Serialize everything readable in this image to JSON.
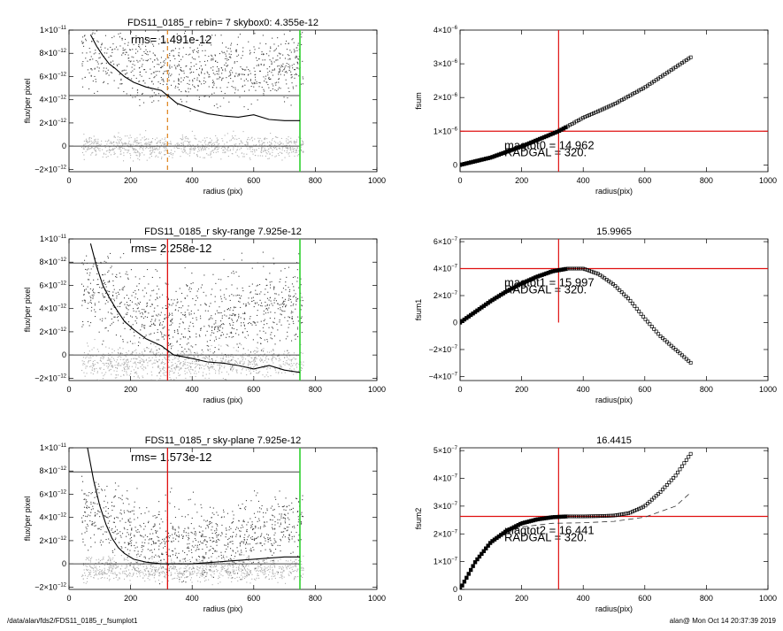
{
  "footer": {
    "path": "/data/alan/fds2/FDS11_0185_r_fsumplot1",
    "stamp": "alan@  Mon Oct 14 20:37:39 2019"
  },
  "colors": {
    "hline": "#e01010",
    "sky_marker": "#30d030",
    "dashed": "#e08a2a",
    "points_light": "#b0b0b0",
    "points_dark": "#404040"
  },
  "chart_data": [
    {
      "type": "scatter",
      "title": "FDS11_0185_r rebin= 7    skybox0:  4.355e-12",
      "rms_text": "rms= 1.491e-12",
      "xlabel": "radius (pix)",
      "ylabel": "flux/per pixel",
      "xlim": [
        0,
        1000
      ],
      "ylim": [
        -2.2e-12,
        1e-11
      ],
      "xticks": [
        "0",
        "200",
        "400",
        "600",
        "800",
        "1000"
      ],
      "yticks": [
        {
          "v": -2e-12,
          "m": "−2",
          "e": "−12"
        },
        {
          "v": 0,
          "m": "0",
          "e": ""
        },
        {
          "v": 2e-12,
          "m": "2",
          "e": "−12"
        },
        {
          "v": 4e-12,
          "m": "4",
          "e": "−12"
        },
        {
          "v": 6e-12,
          "m": "6",
          "e": "−12"
        },
        {
          "v": 8e-12,
          "m": "8",
          "e": "−12"
        },
        {
          "v": 1e-11,
          "m": "1",
          "e": "−11"
        }
      ],
      "hlines": [
        {
          "y": 0,
          "x": [
            0,
            750
          ]
        },
        {
          "y": 4.355e-12,
          "x": [
            0,
            750
          ]
        }
      ],
      "vlines": [
        {
          "x": 320,
          "kind": "dashed"
        },
        {
          "x": 750,
          "kind": "sky"
        }
      ],
      "profile": {
        "x": [
          70,
          90,
          110,
          130,
          150,
          180,
          210,
          250,
          300,
          350,
          400,
          450,
          500,
          550,
          600,
          650,
          700,
          750
        ],
        "y": [
          9.6e-12,
          8.6e-12,
          7.8e-12,
          7.1e-12,
          6.7e-12,
          6e-12,
          5.5e-12,
          5.1e-12,
          4.8e-12,
          3.7e-12,
          3.2e-12,
          2.8e-12,
          2.6e-12,
          2.5e-12,
          2.7e-12,
          2.3e-12,
          2.2e-12,
          2.2e-12
        ]
      },
      "scatter_bands": [
        {
          "y0": 6.5e-12,
          "curvature": 2.2e-12,
          "spread": 2.8e-12,
          "n": 900,
          "tone": "dark"
        },
        {
          "y0": 0,
          "curvature": 0,
          "spread": 9e-13,
          "n": 900,
          "tone": "light"
        }
      ]
    },
    {
      "type": "line",
      "title": "",
      "xlabel": "radius(pix)",
      "ylabel": "fsum",
      "xlim": [
        0,
        1000
      ],
      "ylim": [
        -2e-07,
        4e-06
      ],
      "xticks": [
        "0",
        "200",
        "400",
        "600",
        "800",
        "1000"
      ],
      "yticks": [
        {
          "v": 0,
          "m": "0",
          "e": ""
        },
        {
          "v": 1e-06,
          "m": "1",
          "e": "−6"
        },
        {
          "v": 2e-06,
          "m": "2",
          "e": "−6"
        },
        {
          "v": 3e-06,
          "m": "3",
          "e": "−6"
        },
        {
          "v": 4e-06,
          "m": "4",
          "e": "−6"
        }
      ],
      "hline_value": 1e-06,
      "vline_value": 320,
      "series": [
        {
          "x": [
            0,
            100,
            200,
            320,
            400,
            500,
            600,
            700,
            750
          ],
          "y": [
            0,
            2.2e-07,
            5.5e-07,
            1e-06,
            1.4e-06,
            1.8e-06,
            2.3e-06,
            2.9e-06,
            3.2e-06
          ]
        }
      ],
      "annotations": [
        "magtot0 =  14.962",
        "RADGAL =   320."
      ]
    },
    {
      "type": "scatter",
      "title": "FDS11_0185_r sky-range  7.925e-12",
      "rms_text": "rms= 2.258e-12",
      "xlabel": "radius (pix)",
      "ylabel": "flux/per pixel",
      "xlim": [
        0,
        1000
      ],
      "ylim": [
        -2.2e-12,
        1e-11
      ],
      "xticks": [
        "0",
        "200",
        "400",
        "600",
        "800",
        "1000"
      ],
      "yticks": [
        {
          "v": -2e-12,
          "m": "−2",
          "e": "−12"
        },
        {
          "v": 0,
          "m": "0",
          "e": ""
        },
        {
          "v": 2e-12,
          "m": "2",
          "e": "−12"
        },
        {
          "v": 4e-12,
          "m": "4",
          "e": "−12"
        },
        {
          "v": 6e-12,
          "m": "6",
          "e": "−12"
        },
        {
          "v": 8e-12,
          "m": "8",
          "e": "−12"
        },
        {
          "v": 1e-11,
          "m": "1",
          "e": "−11"
        }
      ],
      "hlines": [
        {
          "y": 0,
          "x": [
            0,
            750
          ]
        },
        {
          "y": 7.925e-12,
          "x": [
            0,
            750
          ]
        }
      ],
      "vlines": [
        {
          "x": 320,
          "kind": "red"
        },
        {
          "x": 750,
          "kind": "sky"
        }
      ],
      "profile": {
        "x": [
          70,
          90,
          110,
          130,
          150,
          180,
          210,
          250,
          300,
          340,
          400,
          450,
          500,
          550,
          600,
          650,
          700,
          750
        ],
        "y": [
          9.6e-12,
          7.6e-12,
          6e-12,
          5e-12,
          4.1e-12,
          2.9e-12,
          2.2e-12,
          1.4e-12,
          8e-13,
          0,
          -3e-13,
          -6e-13,
          -7e-13,
          -9e-13,
          -1.2e-12,
          -9e-13,
          -1.3e-12,
          -1.5e-12
        ]
      },
      "scatter_bands": [
        {
          "y0": 3e-12,
          "curvature": 4e-12,
          "spread": 3.5e-12,
          "n": 1000,
          "tone": "dark"
        },
        {
          "y0": -6e-13,
          "curvature": 0,
          "spread": 1.3e-12,
          "n": 900,
          "tone": "light"
        }
      ]
    },
    {
      "type": "line",
      "title": "15.9965",
      "xlabel": "radius(pix)",
      "ylabel": "fsum1",
      "xlim": [
        0,
        1000
      ],
      "ylim": [
        -4.3e-07,
        6.2e-07
      ],
      "xticks": [
        "0",
        "200",
        "400",
        "600",
        "800",
        "1000"
      ],
      "yticks": [
        {
          "v": -4e-07,
          "m": "−4",
          "e": "−7"
        },
        {
          "v": -2e-07,
          "m": "−2",
          "e": "−7"
        },
        {
          "v": 0,
          "m": "0",
          "e": ""
        },
        {
          "v": 2e-07,
          "m": "2",
          "e": "−7"
        },
        {
          "v": 4e-07,
          "m": "4",
          "e": "−7"
        },
        {
          "v": 6e-07,
          "m": "6",
          "e": "−7"
        }
      ],
      "hline_value": 4e-07,
      "vline_value": 320,
      "vline_range": [
        0,
        6.2e-07
      ],
      "series": [
        {
          "x": [
            0,
            50,
            100,
            150,
            200,
            250,
            300,
            350,
            400,
            450,
            500,
            550,
            600,
            650,
            700,
            750
          ],
          "y": [
            0,
            8e-08,
            1.6e-07,
            2.3e-07,
            2.9e-07,
            3.4e-07,
            3.8e-07,
            4e-07,
            4e-07,
            3.6e-07,
            2.8e-07,
            1.7e-07,
            3e-08,
            -1e-07,
            -2e-07,
            -3e-07
          ]
        }
      ],
      "annotations": [
        "magtot1 =  15.997",
        "RADGAL =   320."
      ]
    },
    {
      "type": "scatter",
      "title": "FDS11_0185_r sky-plane  7.925e-12",
      "rms_text": "rms= 1.573e-12",
      "xlabel": "radius (pix)",
      "ylabel": "flux/per pixel",
      "xlim": [
        0,
        1000
      ],
      "ylim": [
        -2.2e-12,
        1e-11
      ],
      "xticks": [
        "0",
        "200",
        "400",
        "600",
        "800",
        "1000"
      ],
      "yticks": [
        {
          "v": -2e-12,
          "m": "−2",
          "e": "−12"
        },
        {
          "v": 0,
          "m": "0",
          "e": ""
        },
        {
          "v": 2e-12,
          "m": "2",
          "e": "−12"
        },
        {
          "v": 4e-12,
          "m": "4",
          "e": "−12"
        },
        {
          "v": 6e-12,
          "m": "6",
          "e": "−12"
        },
        {
          "v": 8e-12,
          "m": "8",
          "e": "−12"
        },
        {
          "v": 1e-11,
          "m": "1",
          "e": "−11"
        }
      ],
      "hlines": [
        {
          "y": 0,
          "x": [
            0,
            750
          ]
        },
        {
          "y": 7.925e-12,
          "x": [
            0,
            750
          ]
        }
      ],
      "vlines": [
        {
          "x": 320,
          "kind": "red"
        },
        {
          "x": 750,
          "kind": "sky"
        }
      ],
      "profile": {
        "x": [
          60,
          80,
          100,
          120,
          140,
          160,
          180,
          210,
          250,
          300,
          350,
          400,
          450,
          500,
          550,
          600,
          650,
          700,
          750
        ],
        "y": [
          1e-11,
          7.2e-12,
          5e-12,
          3.4e-12,
          2.2e-12,
          1.4e-12,
          9e-13,
          4e-13,
          1.5e-13,
          0,
          0,
          0,
          1e-13,
          2e-13,
          3e-13,
          4e-13,
          5e-13,
          6e-13,
          6e-13
        ]
      },
      "scatter_bands": [
        {
          "y0": 2e-12,
          "curvature": 3.5e-12,
          "spread": 3e-12,
          "n": 1000,
          "tone": "dark"
        },
        {
          "y0": -4e-13,
          "curvature": 0,
          "spread": 1e-12,
          "n": 900,
          "tone": "light"
        }
      ]
    },
    {
      "type": "line",
      "title": "16.4415",
      "xlabel": "radius(pix)",
      "ylabel": "fsum2",
      "xlim": [
        0,
        1000
      ],
      "ylim": [
        0,
        5.1e-07
      ],
      "xticks": [
        "0",
        "200",
        "400",
        "600",
        "800",
        "1000"
      ],
      "yticks": [
        {
          "v": 0,
          "m": "0",
          "e": ""
        },
        {
          "v": 1e-07,
          "m": "1",
          "e": "−7"
        },
        {
          "v": 2e-07,
          "m": "2",
          "e": "−7"
        },
        {
          "v": 3e-07,
          "m": "3",
          "e": "−7"
        },
        {
          "v": 4e-07,
          "m": "4",
          "e": "−7"
        },
        {
          "v": 5e-07,
          "m": "5",
          "e": "−7"
        }
      ],
      "hline_value": 2.63e-07,
      "vline_value": 320,
      "series": [
        {
          "x": [
            0,
            50,
            100,
            150,
            200,
            250,
            300,
            350,
            400,
            450,
            500,
            550,
            600,
            650,
            700,
            750
          ],
          "y": [
            0,
            1e-07,
            1.7e-07,
            2.1e-07,
            2.38e-07,
            2.52e-07,
            2.6e-07,
            2.63e-07,
            2.63e-07,
            2.64e-07,
            2.66e-07,
            2.75e-07,
            3e-07,
            3.5e-07,
            4.1e-07,
            4.9e-07
          ]
        },
        {
          "x": [
            150,
            200,
            300,
            400,
            500,
            600,
            700,
            750
          ],
          "y": [
            2e-07,
            2.25e-07,
            2.38e-07,
            2.4e-07,
            2.45e-07,
            2.6e-07,
            3e-07,
            3.5e-07
          ],
          "style": "dashed"
        }
      ],
      "annotations": [
        "magtot2 =  16.441",
        "RADGAL =   320."
      ]
    }
  ]
}
